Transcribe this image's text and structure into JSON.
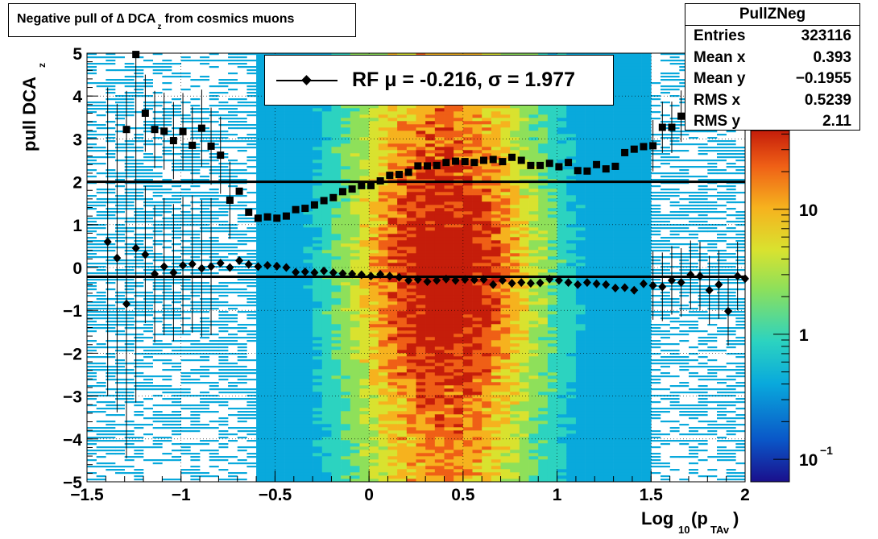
{
  "title": {
    "prefix": "Negative pull of ∆ DCA",
    "sub": "z",
    "suffix": "from cosmics muons"
  },
  "stats_box": {
    "name": "PullZNeg",
    "rows": [
      {
        "label": "Entries",
        "value": "323116"
      },
      {
        "label": "Mean x",
        "value": "0.393"
      },
      {
        "label": "Mean y",
        "value": "−0.1955"
      },
      {
        "label": "RMS x",
        "value": "0.5239"
      },
      {
        "label": "RMS y",
        "value": "2.11"
      }
    ]
  },
  "legend": {
    "entry": "RF μ = -0.216, σ =   1.977"
  },
  "colors": {
    "markers": "#000000",
    "palette": [
      "#1a0f8c",
      "#0a57c8",
      "#09a9dc",
      "#2cd3c0",
      "#8ee05a",
      "#d9e22f",
      "#f6b21e",
      "#ef5f16",
      "#c51d0a"
    ]
  },
  "chart_data": {
    "type": "heatmap",
    "xlabel": {
      "main": "Log",
      "sub1": "10",
      "mid": "(p",
      "sub2": "TAv",
      "end": ")"
    },
    "ylabel": {
      "main": "pull DCA",
      "sub": "z"
    },
    "xlim": [
      -1.5,
      2
    ],
    "ylim": [
      -5,
      5
    ],
    "log_z": true,
    "z_ticks": [
      "10",
      "1",
      "10"
    ],
    "z_tick_exp": "−1",
    "x_ticks": [
      "−1.5",
      "−1",
      "−0.5",
      "0",
      "0.5",
      "1",
      "1.5",
      "2"
    ],
    "y_ticks": [
      "−5",
      "−4",
      "−3",
      "−2",
      "−1",
      "0",
      "1",
      "2",
      "3",
      "4",
      "5"
    ],
    "grid": true,
    "reference_lines_y": [
      2.0,
      -0.216
    ],
    "sigma_series": {
      "name": "sigma",
      "marker": "square",
      "points": [
        {
          "x": -1.29,
          "y": 3.22
        },
        {
          "x": -1.24,
          "y": 4.97
        },
        {
          "x": -1.19,
          "y": 3.6
        },
        {
          "x": -1.14,
          "y": 3.22
        },
        {
          "x": -1.09,
          "y": 3.18
        },
        {
          "x": -1.04,
          "y": 2.96
        },
        {
          "x": -0.99,
          "y": 3.17
        },
        {
          "x": -0.94,
          "y": 2.85
        },
        {
          "x": -0.89,
          "y": 3.25
        },
        {
          "x": -0.84,
          "y": 2.83
        },
        {
          "x": -0.79,
          "y": 2.62
        },
        {
          "x": -0.74,
          "y": 1.57
        },
        {
          "x": -0.69,
          "y": 1.78
        },
        {
          "x": -0.64,
          "y": 1.29
        },
        {
          "x": -0.59,
          "y": 1.15
        },
        {
          "x": -0.54,
          "y": 1.18
        },
        {
          "x": -0.49,
          "y": 1.15
        },
        {
          "x": -0.44,
          "y": 1.2
        },
        {
          "x": -0.39,
          "y": 1.35
        },
        {
          "x": -0.34,
          "y": 1.38
        },
        {
          "x": -0.29,
          "y": 1.46
        },
        {
          "x": -0.24,
          "y": 1.56
        },
        {
          "x": -0.19,
          "y": 1.63
        },
        {
          "x": -0.14,
          "y": 1.77
        },
        {
          "x": -0.09,
          "y": 1.83
        },
        {
          "x": -0.04,
          "y": 1.91
        },
        {
          "x": 0.01,
          "y": 1.91
        },
        {
          "x": 0.06,
          "y": 2.02
        },
        {
          "x": 0.11,
          "y": 2.15
        },
        {
          "x": 0.16,
          "y": 2.17
        },
        {
          "x": 0.21,
          "y": 2.22
        },
        {
          "x": 0.26,
          "y": 2.37
        },
        {
          "x": 0.31,
          "y": 2.37
        },
        {
          "x": 0.36,
          "y": 2.38
        },
        {
          "x": 0.41,
          "y": 2.45
        },
        {
          "x": 0.46,
          "y": 2.48
        },
        {
          "x": 0.51,
          "y": 2.47
        },
        {
          "x": 0.56,
          "y": 2.45
        },
        {
          "x": 0.61,
          "y": 2.5
        },
        {
          "x": 0.66,
          "y": 2.52
        },
        {
          "x": 0.71,
          "y": 2.47
        },
        {
          "x": 0.76,
          "y": 2.57
        },
        {
          "x": 0.81,
          "y": 2.5
        },
        {
          "x": 0.86,
          "y": 2.38
        },
        {
          "x": 0.91,
          "y": 2.38
        },
        {
          "x": 0.96,
          "y": 2.43
        },
        {
          "x": 1.01,
          "y": 2.35
        },
        {
          "x": 1.06,
          "y": 2.45
        },
        {
          "x": 1.11,
          "y": 2.26
        },
        {
          "x": 1.16,
          "y": 2.25
        },
        {
          "x": 1.21,
          "y": 2.4
        },
        {
          "x": 1.26,
          "y": 2.3
        },
        {
          "x": 1.31,
          "y": 2.36
        },
        {
          "x": 1.36,
          "y": 2.68
        },
        {
          "x": 1.41,
          "y": 2.76
        },
        {
          "x": 1.46,
          "y": 2.82
        },
        {
          "x": 1.51,
          "y": 2.84
        },
        {
          "x": 1.56,
          "y": 3.27
        },
        {
          "x": 1.61,
          "y": 3.27
        },
        {
          "x": 1.66,
          "y": 3.53
        },
        {
          "x": 1.71,
          "y": 4.2
        },
        {
          "x": 1.76,
          "y": 4.98
        }
      ]
    },
    "mean_series": {
      "name": "mean",
      "marker": "diamond",
      "points": [
        {
          "x": -1.39,
          "y": 0.6
        },
        {
          "x": -1.34,
          "y": 0.22
        },
        {
          "x": -1.29,
          "y": -0.85
        },
        {
          "x": -1.24,
          "y": 0.45
        },
        {
          "x": -1.19,
          "y": 0.3
        },
        {
          "x": -1.14,
          "y": -0.15
        },
        {
          "x": -1.09,
          "y": 0.02
        },
        {
          "x": -1.04,
          "y": -0.12
        },
        {
          "x": -0.99,
          "y": 0.05
        },
        {
          "x": -0.94,
          "y": 0.08
        },
        {
          "x": -0.89,
          "y": -0.02
        },
        {
          "x": -0.84,
          "y": 0.02
        },
        {
          "x": -0.79,
          "y": 0.1
        },
        {
          "x": -0.74,
          "y": 0.0
        },
        {
          "x": -0.69,
          "y": 0.16
        },
        {
          "x": -0.64,
          "y": 0.07
        },
        {
          "x": -0.59,
          "y": 0.02
        },
        {
          "x": -0.54,
          "y": 0.05
        },
        {
          "x": -0.49,
          "y": 0.03
        },
        {
          "x": -0.44,
          "y": 0.0
        },
        {
          "x": -0.39,
          "y": -0.11
        },
        {
          "x": -0.34,
          "y": -0.1
        },
        {
          "x": -0.29,
          "y": -0.12
        },
        {
          "x": -0.24,
          "y": -0.08
        },
        {
          "x": -0.19,
          "y": -0.12
        },
        {
          "x": -0.14,
          "y": -0.14
        },
        {
          "x": -0.09,
          "y": -0.15
        },
        {
          "x": -0.04,
          "y": -0.17
        },
        {
          "x": 0.01,
          "y": -0.2
        },
        {
          "x": 0.06,
          "y": -0.16
        },
        {
          "x": 0.11,
          "y": -0.2
        },
        {
          "x": 0.16,
          "y": -0.23
        },
        {
          "x": 0.21,
          "y": -0.3
        },
        {
          "x": 0.26,
          "y": -0.28
        },
        {
          "x": 0.31,
          "y": -0.33
        },
        {
          "x": 0.36,
          "y": -0.3
        },
        {
          "x": 0.41,
          "y": -0.27
        },
        {
          "x": 0.46,
          "y": -0.3
        },
        {
          "x": 0.51,
          "y": -0.28
        },
        {
          "x": 0.56,
          "y": -0.29
        },
        {
          "x": 0.61,
          "y": -0.28
        },
        {
          "x": 0.66,
          "y": -0.4
        },
        {
          "x": 0.71,
          "y": -0.3
        },
        {
          "x": 0.76,
          "y": -0.37
        },
        {
          "x": 0.81,
          "y": -0.35
        },
        {
          "x": 0.86,
          "y": -0.37
        },
        {
          "x": 0.91,
          "y": -0.36
        },
        {
          "x": 0.96,
          "y": -0.27
        },
        {
          "x": 1.01,
          "y": -0.3
        },
        {
          "x": 1.06,
          "y": -0.35
        },
        {
          "x": 1.11,
          "y": -0.4
        },
        {
          "x": 1.16,
          "y": -0.35
        },
        {
          "x": 1.21,
          "y": -0.38
        },
        {
          "x": 1.26,
          "y": -0.4
        },
        {
          "x": 1.31,
          "y": -0.48
        },
        {
          "x": 1.36,
          "y": -0.47
        },
        {
          "x": 1.41,
          "y": -0.53
        },
        {
          "x": 1.46,
          "y": -0.38
        },
        {
          "x": 1.51,
          "y": -0.42
        },
        {
          "x": 1.56,
          "y": -0.45
        },
        {
          "x": 1.61,
          "y": -0.3
        },
        {
          "x": 1.66,
          "y": -0.35
        },
        {
          "x": 1.71,
          "y": -0.17
        },
        {
          "x": 1.76,
          "y": -0.2
        },
        {
          "x": 1.81,
          "y": -0.53
        },
        {
          "x": 1.86,
          "y": -0.4
        },
        {
          "x": 1.91,
          "y": -1.02
        },
        {
          "x": 1.96,
          "y": -0.2
        },
        {
          "x": 2.0,
          "y": -0.26
        }
      ]
    }
  }
}
